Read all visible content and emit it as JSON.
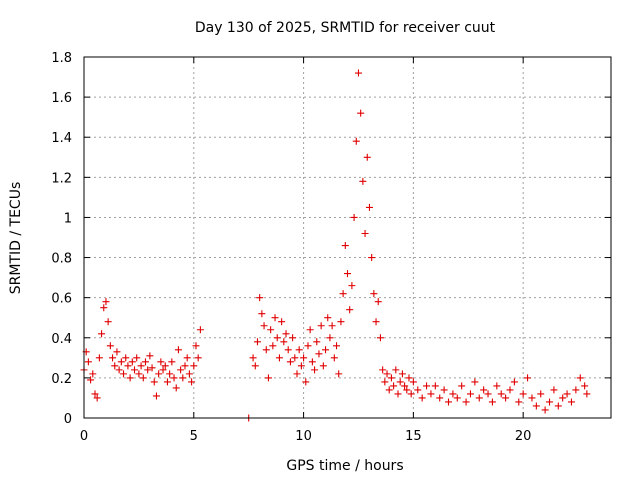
{
  "chart_data": {
    "type": "scatter",
    "title": "Day 130 of 2025, SRMTID for receiver cuut",
    "xlabel": "GPS time / hours",
    "ylabel": "SRMTID / TECUs",
    "xlim": [
      0,
      24
    ],
    "ylim": [
      0,
      1.8
    ],
    "xticks": [
      0,
      5,
      10,
      15,
      20
    ],
    "xtick_labels": [
      "0",
      "5",
      "10",
      "15",
      "20"
    ],
    "yticks": [
      0,
      0.2,
      0.4,
      0.6,
      0.8,
      1.0,
      1.2,
      1.4,
      1.6,
      1.8
    ],
    "ytick_labels": [
      "0",
      "0.2",
      "0.4",
      "0.6",
      "0.8",
      "1",
      "1.2",
      "1.4",
      "1.6",
      "1.8"
    ],
    "grid": true,
    "marker": "+",
    "color": "#e00000",
    "series": [
      {
        "name": "SRMTID",
        "points": [
          [
            0.0,
            0.24
          ],
          [
            0.1,
            0.33
          ],
          [
            0.2,
            0.28
          ],
          [
            0.3,
            0.19
          ],
          [
            0.4,
            0.22
          ],
          [
            0.5,
            0.12
          ],
          [
            0.6,
            0.1
          ],
          [
            0.7,
            0.3
          ],
          [
            0.8,
            0.42
          ],
          [
            0.9,
            0.55
          ],
          [
            1.0,
            0.58
          ],
          [
            1.1,
            0.48
          ],
          [
            1.2,
            0.36
          ],
          [
            1.3,
            0.3
          ],
          [
            1.4,
            0.26
          ],
          [
            1.5,
            0.33
          ],
          [
            1.6,
            0.24
          ],
          [
            1.7,
            0.28
          ],
          [
            1.8,
            0.22
          ],
          [
            1.9,
            0.3
          ],
          [
            2.0,
            0.26
          ],
          [
            2.1,
            0.2
          ],
          [
            2.2,
            0.28
          ],
          [
            2.3,
            0.24
          ],
          [
            2.4,
            0.3
          ],
          [
            2.5,
            0.22
          ],
          [
            2.6,
            0.26
          ],
          [
            2.7,
            0.2
          ],
          [
            2.8,
            0.28
          ],
          [
            2.9,
            0.24
          ],
          [
            3.0,
            0.31
          ],
          [
            3.1,
            0.25
          ],
          [
            3.2,
            0.18
          ],
          [
            3.3,
            0.11
          ],
          [
            3.4,
            0.22
          ],
          [
            3.5,
            0.28
          ],
          [
            3.6,
            0.24
          ],
          [
            3.7,
            0.26
          ],
          [
            3.8,
            0.18
          ],
          [
            3.9,
            0.22
          ],
          [
            4.0,
            0.28
          ],
          [
            4.1,
            0.2
          ],
          [
            4.2,
            0.15
          ],
          [
            4.3,
            0.34
          ],
          [
            4.4,
            0.24
          ],
          [
            4.5,
            0.2
          ],
          [
            4.6,
            0.26
          ],
          [
            4.7,
            0.3
          ],
          [
            4.8,
            0.22
          ],
          [
            4.9,
            0.18
          ],
          [
            5.0,
            0.26
          ],
          [
            5.1,
            0.36
          ],
          [
            5.2,
            0.3
          ],
          [
            5.3,
            0.44
          ],
          [
            7.5,
            0.0
          ],
          [
            7.7,
            0.3
          ],
          [
            7.8,
            0.26
          ],
          [
            7.9,
            0.38
          ],
          [
            8.0,
            0.6
          ],
          [
            8.1,
            0.52
          ],
          [
            8.2,
            0.46
          ],
          [
            8.3,
            0.34
          ],
          [
            8.4,
            0.2
          ],
          [
            8.5,
            0.44
          ],
          [
            8.6,
            0.36
          ],
          [
            8.7,
            0.5
          ],
          [
            8.8,
            0.4
          ],
          [
            8.9,
            0.3
          ],
          [
            9.0,
            0.48
          ],
          [
            9.1,
            0.38
          ],
          [
            9.2,
            0.42
          ],
          [
            9.3,
            0.34
          ],
          [
            9.4,
            0.28
          ],
          [
            9.5,
            0.4
          ],
          [
            9.6,
            0.3
          ],
          [
            9.7,
            0.22
          ],
          [
            9.8,
            0.34
          ],
          [
            9.9,
            0.26
          ],
          [
            10.0,
            0.3
          ],
          [
            10.1,
            0.18
          ],
          [
            10.2,
            0.36
          ],
          [
            10.3,
            0.44
          ],
          [
            10.4,
            0.28
          ],
          [
            10.5,
            0.24
          ],
          [
            10.6,
            0.38
          ],
          [
            10.7,
            0.32
          ],
          [
            10.8,
            0.46
          ],
          [
            10.9,
            0.26
          ],
          [
            11.0,
            0.34
          ],
          [
            11.1,
            0.5
          ],
          [
            11.2,
            0.4
          ],
          [
            11.3,
            0.46
          ],
          [
            11.4,
            0.3
          ],
          [
            11.5,
            0.36
          ],
          [
            11.6,
            0.22
          ],
          [
            11.7,
            0.48
          ],
          [
            11.8,
            0.62
          ],
          [
            11.9,
            0.86
          ],
          [
            12.0,
            0.72
          ],
          [
            12.1,
            0.54
          ],
          [
            12.2,
            0.66
          ],
          [
            12.3,
            1.0
          ],
          [
            12.4,
            1.38
          ],
          [
            12.5,
            1.72
          ],
          [
            12.6,
            1.52
          ],
          [
            12.7,
            1.18
          ],
          [
            12.8,
            0.92
          ],
          [
            12.9,
            1.3
          ],
          [
            13.0,
            1.05
          ],
          [
            13.1,
            0.8
          ],
          [
            13.2,
            0.62
          ],
          [
            13.3,
            0.48
          ],
          [
            13.4,
            0.58
          ],
          [
            13.5,
            0.4
          ],
          [
            13.6,
            0.24
          ],
          [
            13.7,
            0.18
          ],
          [
            13.8,
            0.22
          ],
          [
            13.9,
            0.14
          ],
          [
            14.0,
            0.2
          ],
          [
            14.1,
            0.16
          ],
          [
            14.2,
            0.24
          ],
          [
            14.3,
            0.12
          ],
          [
            14.4,
            0.18
          ],
          [
            14.5,
            0.22
          ],
          [
            14.6,
            0.16
          ],
          [
            14.7,
            0.14
          ],
          [
            14.8,
            0.2
          ],
          [
            14.9,
            0.12
          ],
          [
            15.0,
            0.18
          ],
          [
            15.2,
            0.14
          ],
          [
            15.4,
            0.1
          ],
          [
            15.6,
            0.16
          ],
          [
            15.8,
            0.12
          ],
          [
            16.0,
            0.16
          ],
          [
            16.2,
            0.1
          ],
          [
            16.4,
            0.14
          ],
          [
            16.6,
            0.08
          ],
          [
            16.8,
            0.12
          ],
          [
            17.0,
            0.1
          ],
          [
            17.2,
            0.16
          ],
          [
            17.4,
            0.08
          ],
          [
            17.6,
            0.12
          ],
          [
            17.8,
            0.18
          ],
          [
            18.0,
            0.1
          ],
          [
            18.2,
            0.14
          ],
          [
            18.4,
            0.12
          ],
          [
            18.6,
            0.08
          ],
          [
            18.8,
            0.16
          ],
          [
            19.0,
            0.12
          ],
          [
            19.2,
            0.1
          ],
          [
            19.4,
            0.14
          ],
          [
            19.6,
            0.18
          ],
          [
            19.8,
            0.08
          ],
          [
            20.0,
            0.12
          ],
          [
            20.2,
            0.2
          ],
          [
            20.4,
            0.1
          ],
          [
            20.6,
            0.06
          ],
          [
            20.8,
            0.12
          ],
          [
            21.0,
            0.04
          ],
          [
            21.2,
            0.08
          ],
          [
            21.4,
            0.14
          ],
          [
            21.6,
            0.06
          ],
          [
            21.8,
            0.1
          ],
          [
            22.0,
            0.12
          ],
          [
            22.2,
            0.08
          ],
          [
            22.4,
            0.14
          ],
          [
            22.6,
            0.2
          ],
          [
            22.8,
            0.16
          ],
          [
            22.9,
            0.12
          ]
        ]
      }
    ]
  }
}
